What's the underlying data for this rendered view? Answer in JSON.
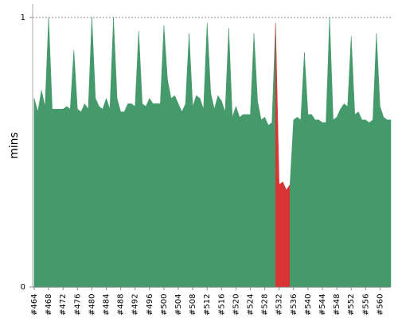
{
  "chart_data": {
    "type": "area",
    "y_label": "mins",
    "categories": [
      "#464",
      null,
      null,
      null,
      "#468",
      null,
      null,
      null,
      "#472",
      null,
      null,
      null,
      "#476",
      null,
      null,
      null,
      "#480",
      null,
      null,
      null,
      "#484",
      null,
      null,
      null,
      "#488",
      null,
      null,
      null,
      "#492",
      null,
      null,
      null,
      "#496",
      null,
      null,
      null,
      "#500",
      null,
      null,
      null,
      "#504",
      null,
      null,
      null,
      "#508",
      null,
      null,
      null,
      "#512",
      null,
      null,
      null,
      "#516",
      null,
      null,
      null,
      "#520",
      null,
      null,
      null,
      "#524",
      null,
      null,
      null,
      "#528",
      null,
      null,
      null,
      "#532",
      null,
      null,
      null,
      "#536",
      null,
      null,
      null,
      "#540",
      null,
      null,
      null,
      "#544",
      null,
      null,
      null,
      "#548",
      null,
      null,
      null,
      "#552",
      null,
      null,
      null,
      "#556",
      null,
      null,
      null,
      "#560",
      null,
      null,
      null
    ],
    "values": [
      0.7,
      0.65,
      0.73,
      0.67,
      1.0,
      0.66,
      0.66,
      0.66,
      0.66,
      0.67,
      0.66,
      0.88,
      0.66,
      0.65,
      0.68,
      0.66,
      1.0,
      0.7,
      0.67,
      0.66,
      0.7,
      0.66,
      1.0,
      0.7,
      0.65,
      0.65,
      0.68,
      0.68,
      0.67,
      0.95,
      0.68,
      0.67,
      0.7,
      0.68,
      0.68,
      0.68,
      0.97,
      0.77,
      0.7,
      0.71,
      0.68,
      0.65,
      0.68,
      0.94,
      0.67,
      0.71,
      0.7,
      0.66,
      0.98,
      0.72,
      0.66,
      0.71,
      0.69,
      0.65,
      0.96,
      0.63,
      0.67,
      0.63,
      0.64,
      0.64,
      0.64,
      0.94,
      0.69,
      0.62,
      0.63,
      0.6,
      0.61,
      0.98,
      0.38,
      0.39,
      0.36,
      0.38,
      0.62,
      0.63,
      0.62,
      0.87,
      0.64,
      0.64,
      0.62,
      0.62,
      0.61,
      0.61,
      1.0,
      0.62,
      0.63,
      0.66,
      0.68,
      0.67,
      0.93,
      0.64,
      0.65,
      0.62,
      0.62,
      0.61,
      0.62,
      0.94,
      0.67,
      0.63,
      0.62,
      0.62
    ],
    "colors": [
      "#459a6c",
      "#459a6c",
      "#459a6c",
      "#459a6c",
      "#459a6c",
      "#459a6c",
      "#459a6c",
      "#459a6c",
      "#459a6c",
      "#459a6c",
      "#459a6c",
      "#459a6c",
      "#459a6c",
      "#459a6c",
      "#459a6c",
      "#459a6c",
      "#459a6c",
      "#459a6c",
      "#459a6c",
      "#459a6c",
      "#459a6c",
      "#459a6c",
      "#459a6c",
      "#459a6c",
      "#459a6c",
      "#459a6c",
      "#459a6c",
      "#459a6c",
      "#459a6c",
      "#459a6c",
      "#459a6c",
      "#459a6c",
      "#459a6c",
      "#459a6c",
      "#459a6c",
      "#459a6c",
      "#459a6c",
      "#459a6c",
      "#459a6c",
      "#459a6c",
      "#459a6c",
      "#459a6c",
      "#459a6c",
      "#459a6c",
      "#459a6c",
      "#459a6c",
      "#459a6c",
      "#459a6c",
      "#459a6c",
      "#459a6c",
      "#459a6c",
      "#459a6c",
      "#459a6c",
      "#459a6c",
      "#459a6c",
      "#459a6c",
      "#459a6c",
      "#459a6c",
      "#459a6c",
      "#459a6c",
      "#459a6c",
      "#459a6c",
      "#459a6c",
      "#459a6c",
      "#459a6c",
      "#459a6c",
      "#459a6c",
      "#459a6c",
      "#d93535",
      "#d93535",
      "#d93535",
      "#d93535",
      "#459a6c",
      "#459a6c",
      "#459a6c",
      "#459a6c",
      "#459a6c",
      "#459a6c",
      "#459a6c",
      "#459a6c",
      "#459a6c",
      "#459a6c",
      "#459a6c",
      "#459a6c",
      "#459a6c",
      "#459a6c",
      "#459a6c",
      "#459a6c",
      "#459a6c",
      "#459a6c",
      "#459a6c",
      "#459a6c",
      "#459a6c",
      "#459a6c",
      "#459a6c",
      "#459a6c",
      "#459a6c",
      "#459a6c",
      "#459a6c",
      "#459a6c"
    ],
    "ylim": [
      0,
      1
    ],
    "yticks": [
      0,
      1
    ],
    "grid": true
  }
}
